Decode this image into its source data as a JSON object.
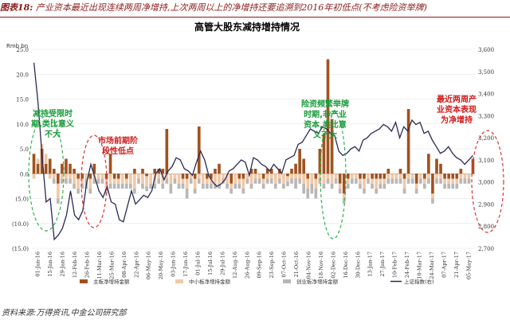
{
  "header": {
    "figure_label": "图表18:",
    "caption": "产业资本最近出现连续两周净增持,上次两周以上的净增持还要追溯到2016年初低点(不考虑险资举牌)"
  },
  "footer": {
    "source": "资料来源:万得资讯,中金公司研究部"
  },
  "colors": {
    "main_board": "#a0521e",
    "sme_board": "#f2c8a5",
    "chinext": "#b7b7b7",
    "index_line": "#2a2a52",
    "annot_green": "#1a9a3a",
    "annot_red": "#d01a1a",
    "circle_green": "#2db34a",
    "circle_red": "#e03030"
  },
  "chart_data": {
    "type": "bar",
    "title": "高管大股东减持增持情况",
    "y_unit": "Rmb bn",
    "ylim": [
      -15,
      25
    ],
    "yticks": [
      "25.0",
      "20.0",
      "15.0",
      "10.0",
      "5.0",
      "0.0",
      "(5.0)",
      "(10.0)",
      "(15.0)"
    ],
    "y2lim": [
      2700,
      3600
    ],
    "y2ticks": [
      "3,600",
      "3,500",
      "3,400",
      "3,300",
      "3,200",
      "3,100",
      "3,000",
      "2,900",
      "2,800",
      "2,700"
    ],
    "x_tick_labels": [
      "01-Jan-16",
      "15-Jan-16",
      "29-Jan-16",
      "12-Feb-16",
      "26-Feb-16",
      "11-Mar-16",
      "25-Mar-16",
      "08-Apr-16",
      "22-Apr-16",
      "06-May-16",
      "20-May-16",
      "03-Jun-16",
      "17-Jun-16",
      "01-Jul-16",
      "15-Jul-16",
      "29-Jul-16",
      "12-Aug-16",
      "26-Aug-16",
      "09-Sep-16",
      "23-Sep-16",
      "07-Oct-16",
      "21-Oct-16",
      "04-Nov-16",
      "18-Nov-16",
      "02-Dec-16",
      "16-Dec-16",
      "30-Dec-16",
      "13-Jan-17",
      "27-Jan-17",
      "10-Feb-17",
      "24-Feb-17",
      "10-Mar-17",
      "24-Mar-17",
      "07-Apr-17",
      "21-Apr-17",
      "05-May-17"
    ],
    "series": [
      {
        "name": "主板净增持金额",
        "values": [
          4,
          2,
          5,
          2,
          3,
          1,
          -2,
          2,
          3,
          2,
          1,
          -1,
          -1,
          0,
          -1,
          2,
          0,
          0,
          -1,
          4,
          -1,
          -1,
          0,
          -1,
          0,
          1,
          0,
          1,
          -0.5,
          0,
          1,
          1,
          1,
          9,
          0,
          0,
          0,
          -1,
          -1,
          0,
          -1,
          9.5,
          0,
          -1,
          -1,
          1,
          2,
          0,
          0,
          -2,
          0,
          -1,
          -1,
          0,
          1,
          1,
          0,
          -1,
          1,
          1,
          0,
          1,
          0,
          -0.5,
          1,
          2,
          5,
          3,
          -1,
          0,
          -1,
          5,
          8,
          23,
          11,
          0,
          -2,
          -4,
          -1,
          0,
          0,
          -1,
          -1,
          0,
          -1,
          -1,
          -1,
          -1,
          1,
          0,
          0,
          1,
          -1,
          13,
          0,
          -2,
          0,
          -1,
          4,
          -4,
          3,
          2,
          -1,
          -1,
          -1,
          -1,
          1,
          0,
          0,
          3
        ]
      },
      {
        "name": "中小板净增持金额",
        "values": [
          -1,
          1,
          1,
          2,
          -1,
          -1,
          -3,
          -1,
          -1,
          -1,
          -2,
          -2,
          -1,
          -1,
          -2,
          -1,
          -1,
          -1,
          -2,
          -2,
          -1,
          -1,
          -2,
          -1,
          -2,
          -3,
          -1,
          -2,
          -2,
          -2,
          -2,
          -1,
          -2,
          -1,
          -2,
          -1,
          -2,
          -1,
          -2,
          -1,
          -2,
          -1,
          -2,
          -1,
          -1,
          -2,
          -2,
          -1,
          -2,
          -1,
          -2,
          -1,
          -2,
          -1,
          -2,
          -1,
          -1,
          -1,
          -1,
          -1,
          -2,
          -1,
          -2,
          -1,
          -1,
          -1,
          -1,
          -2,
          -2,
          -2,
          -2,
          -1,
          -2,
          -1,
          -2,
          -1,
          -1,
          -1,
          -1,
          -1,
          -1,
          -1,
          -2,
          -1,
          -1,
          -2,
          -1,
          -1,
          -1,
          -1,
          -1,
          -1,
          -2,
          -1,
          -1,
          -1,
          -1,
          -1,
          -1,
          -1,
          -1,
          -1,
          -1,
          -1,
          -1,
          -1,
          -1,
          -1,
          -1
        ]
      },
      {
        "name": "创业板净增持金额",
        "values": [
          0,
          0,
          0,
          0,
          0,
          -1,
          -1,
          -1,
          -1,
          -1,
          -1,
          -1,
          -1,
          -2,
          -1,
          -1,
          -1,
          -1,
          -1,
          -1,
          -1,
          -1,
          -1,
          -1,
          -1,
          -1,
          -1,
          -1,
          -1,
          -1,
          -1,
          -1,
          -1,
          -1,
          -2,
          -1,
          -1,
          -1,
          -2,
          -1,
          -1,
          -1,
          -1,
          -1,
          -1,
          -1,
          -1,
          -1,
          -1,
          -1,
          -1,
          -1,
          -1,
          -1,
          -1,
          -1,
          -1,
          -1,
          -1,
          -1,
          -1,
          -1,
          -1,
          -1,
          -1,
          -2,
          -1,
          -2,
          -2,
          -2,
          -2,
          -1,
          -1,
          -1,
          -1,
          -1,
          -1,
          -1,
          -1,
          -1,
          -1,
          -1,
          -1,
          -1,
          -1,
          -1,
          -1,
          -1,
          -1,
          -1,
          -1,
          -1,
          -1,
          -1,
          -1,
          -1,
          -1,
          -1,
          -1,
          -1,
          -1,
          -1,
          -1,
          -1,
          -1,
          -1,
          -1,
          -1,
          -1
        ]
      },
      {
        "name": "上证指数(右)",
        "axis": "right",
        "type": "line",
        "values": [
          3540,
          3360,
          3120,
          2910,
          2925,
          2740,
          2760,
          2790,
          2850,
          2960,
          2850,
          2830,
          2870,
          3000,
          3080,
          3020,
          2960,
          2930,
          2980,
          2910,
          2900,
          2830,
          2820,
          2890,
          2960,
          2900,
          2920,
          2940,
          2930,
          2960,
          3040,
          3060,
          3010,
          3050,
          3070,
          3110,
          3100,
          3060,
          3050,
          3030,
          3090,
          3140,
          3100,
          3030,
          3000,
          2980,
          2990,
          3010,
          3050,
          3060,
          3080,
          3100,
          3090,
          3030,
          3110,
          3100,
          3080,
          3070,
          3050,
          3080,
          3060,
          3040,
          3100,
          3110,
          3120,
          3170,
          3180,
          3210,
          3240,
          3230,
          3220,
          3250,
          3240,
          3220,
          3210,
          3140,
          3120,
          3130,
          3150,
          3160,
          3140,
          3190,
          3200,
          3220,
          3230,
          3240,
          3260,
          3250,
          3230,
          3270,
          3200,
          3250,
          3230,
          3280,
          3260,
          3270,
          3220,
          3230,
          3190,
          3160,
          3130,
          3140,
          3160,
          3130,
          3110,
          3100,
          3080,
          3100,
          3120
        ]
      }
    ],
    "annotations": [
      {
        "text": [
          "减持受限时",
          "期,类比意义",
          "不大"
        ],
        "color": "green"
      },
      {
        "text": [
          "市场前期阶",
          "段性低点"
        ],
        "color": "red"
      },
      {
        "text": [
          "险资频繁举牌",
          "时期,非产业",
          "资本,类比意",
          "义不大"
        ],
        "color": "green"
      },
      {
        "text": [
          "最近两周产",
          "业资本表现",
          "为净增持"
        ],
        "color": "red"
      }
    ],
    "legend_position": "bottom"
  }
}
